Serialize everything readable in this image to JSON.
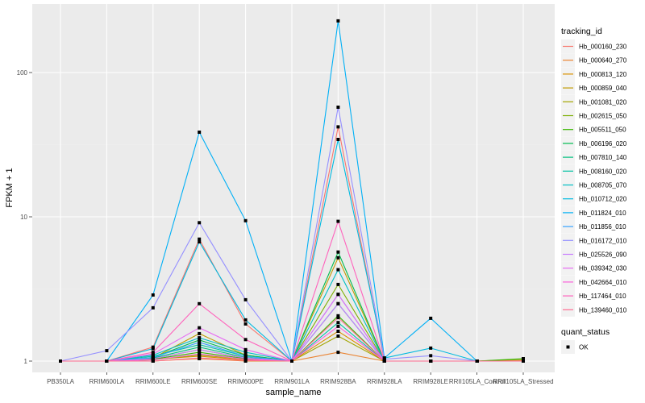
{
  "chart_data": {
    "type": "line",
    "title": "",
    "xlabel": "sample_name",
    "ylabel": "FPKM + 1",
    "yscale": "log10",
    "ylim": [
      0.85,
      300
    ],
    "yticks": [
      1,
      10,
      100
    ],
    "ytick_labels": [
      "1",
      "10",
      "100"
    ],
    "grid": true,
    "legend_position": "right",
    "categories": [
      "PB350LA",
      "RRIM600LA",
      "RRIM600LE",
      "RRIM600SE",
      "RRIM600PE",
      "RRIM901LA",
      "RRIM928BA",
      "RRIM928LA",
      "RRIM928LE",
      "RRII105LA_Control",
      "RRII105LA_Stressed"
    ],
    "legend_title": "tracking_id",
    "series": [
      {
        "name": "Hb_000160_230",
        "color": "#F8766D",
        "values": [
          1,
          1,
          1.25,
          7.0,
          1.81,
          1,
          42,
          1,
          1,
          1,
          1
        ]
      },
      {
        "name": "Hb_000640_270",
        "color": "#EA8331",
        "values": [
          1,
          1,
          1.0,
          1.04,
          1.0,
          1,
          1.15,
          1,
          1,
          1,
          1.01
        ]
      },
      {
        "name": "Hb_000813_120",
        "color": "#D89000",
        "values": [
          1,
          1,
          1.03,
          1.08,
          1.02,
          1,
          1.61,
          1,
          1,
          1,
          1
        ]
      },
      {
        "name": "Hb_000859_040",
        "color": "#C09B00",
        "values": [
          1,
          1,
          1.05,
          1.55,
          1.1,
          1,
          5.2,
          1,
          1,
          1,
          1
        ]
      },
      {
        "name": "Hb_001081_020",
        "color": "#A3A500",
        "values": [
          1,
          1,
          1.02,
          1.1,
          1.03,
          1,
          1.49,
          1,
          1,
          1,
          1
        ]
      },
      {
        "name": "Hb_002615_050",
        "color": "#7CAE00",
        "values": [
          1,
          1,
          1.04,
          1.2,
          1.05,
          1,
          3.4,
          1,
          1,
          1,
          1.03
        ]
      },
      {
        "name": "Hb_005511_050",
        "color": "#39B600",
        "values": [
          1,
          1,
          1.03,
          1.15,
          1.04,
          1,
          2.06,
          1,
          1,
          1,
          1.04
        ]
      },
      {
        "name": "Hb_006196_020",
        "color": "#00BB4E",
        "values": [
          1,
          1,
          1.06,
          1.4,
          1.1,
          1,
          5.7,
          1,
          1,
          1,
          1
        ]
      },
      {
        "name": "Hb_007810_140",
        "color": "#00BF7D",
        "values": [
          1,
          1,
          1.05,
          1.25,
          1.06,
          1,
          2.5,
          1,
          1,
          1,
          1
        ]
      },
      {
        "name": "Hb_008160_020",
        "color": "#00C1A3",
        "values": [
          1,
          1,
          1.08,
          1.3,
          1.08,
          1,
          1.85,
          1,
          1,
          1,
          1
        ]
      },
      {
        "name": "Hb_008705_070",
        "color": "#00BFC4",
        "values": [
          1,
          1,
          1.1,
          1.45,
          1.15,
          1,
          4.3,
          1,
          1,
          1,
          1
        ]
      },
      {
        "name": "Hb_010712_020",
        "color": "#00BAE0",
        "values": [
          1,
          1,
          1.22,
          6.7,
          1.93,
          1,
          34.4,
          1.05,
          1.23,
          1,
          1
        ]
      },
      {
        "name": "Hb_011824_010",
        "color": "#00B0F6",
        "values": [
          1,
          1,
          2.87,
          38.6,
          9.4,
          1,
          228,
          1.05,
          1.98,
          1,
          1
        ]
      },
      {
        "name": "Hb_011856_010",
        "color": "#35A2FF",
        "values": [
          1,
          1,
          1.06,
          1.35,
          1.08,
          1,
          2.9,
          1,
          1,
          1,
          1
        ]
      },
      {
        "name": "Hb_016172_010",
        "color": "#9590FF",
        "values": [
          1,
          1.18,
          2.34,
          9.1,
          2.66,
          1,
          57.5,
          1.03,
          1.09,
          1,
          1
        ]
      },
      {
        "name": "Hb_025526_090",
        "color": "#C77CFF",
        "values": [
          1,
          1,
          1.04,
          1.2,
          1.05,
          1,
          2.5,
          1,
          1,
          1,
          1
        ]
      },
      {
        "name": "Hb_039342_030",
        "color": "#E76BF3",
        "values": [
          1,
          1,
          1.12,
          1.7,
          1.2,
          1,
          2.9,
          1,
          1,
          1,
          1
        ]
      },
      {
        "name": "Hb_042664_010",
        "color": "#FA62DB",
        "values": [
          1,
          1,
          1.02,
          1.12,
          1.03,
          1,
          1.74,
          1,
          1,
          1,
          1
        ]
      },
      {
        "name": "Hb_117464_010",
        "color": "#FF62BC",
        "values": [
          1,
          1,
          1.15,
          2.5,
          1.41,
          1,
          9.3,
          1,
          1,
          1,
          1
        ]
      },
      {
        "name": "Hb_139460_010",
        "color": "#FF6C91",
        "values": [
          1,
          1,
          1.0,
          1.05,
          1.01,
          1,
          2.0,
          1,
          1,
          1,
          1
        ]
      }
    ],
    "quant_status_legend_title": "quant_status",
    "quant_status_levels": [
      "OK"
    ]
  },
  "colors": {
    "panel_bg": "#EBEBEB",
    "grid_major": "#FFFFFF",
    "grid_minor": "#F2F2F2",
    "point": "#000000",
    "legend_key_bg": "#F2F2F2"
  }
}
